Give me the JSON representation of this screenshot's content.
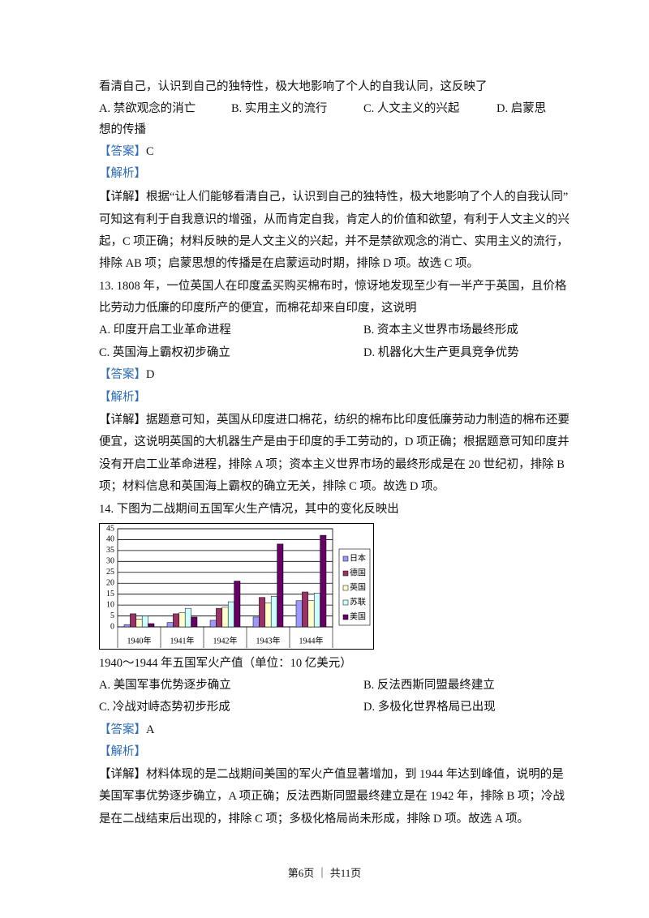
{
  "q12": {
    "stem_tail": "看清自己，认识到自己的独特性，极大地影响了个人的自我认同，这反映了",
    "options": [
      "A. 禁欲观念的消亡",
      "B. 实用主义的流行",
      "C. 人文主义的兴起",
      "D. 启蒙思"
    ],
    "option_tail": "想的传播",
    "answer_label": "【答案】",
    "answer": "C",
    "analysis_label": "【解析】",
    "detail_label": "【详解】",
    "detail_lines": [
      "根据“让人们能够看清自己，认识到自己的独特性，极大地影响了个人的自我认同”",
      "可知这有利于自我意识的增强，从而肯定自我，肯定人的价值和欲望，有利于人文主义的兴",
      "起，C 项正确；材料反映的是人文主义的兴起，并不是禁欲观念的消亡、实用主义的流行，",
      "排除 AB 项；启蒙思想的传播是在启蒙运动时期，排除 D 项。故选 C 项。"
    ]
  },
  "q13": {
    "stem_lines": [
      "13. 1808 年，一位英国人在印度孟买购买棉布时，惊讶地发现至少有一半产于英国，且价格",
      "比劳动力低廉的印度所产的便宜，而棉花却来自印度，这说明"
    ],
    "options": [
      "A. 印度开启工业革命进程",
      "B. 资本主义世界市场最终形成",
      "C. 英国海上霸权初步确立",
      "D. 机器化大生产更具竞争优势"
    ],
    "answer_label": "【答案】",
    "answer": "D",
    "analysis_label": "【解析】",
    "detail_label": "【详解】",
    "detail_lines": [
      "据题意可知，英国从印度进口棉花，纺织的棉布比印度低廉劳动力制造的棉布还要",
      "便宜，这说明英国的大机器生产是由于印度的手工劳动的，D 项正确；根据题意可知印度并",
      "没有开启工业革命进程，排除 A 项；资本主义世界市场的最终形成是在 20 世纪初，排除 B",
      "项；材料信息和英国海上霸权的确立无关，排除 C 项。故选 D 项。"
    ]
  },
  "q14": {
    "stem": "14.  下图为二战期间五国军火生产情况，其中的变化反映出",
    "caption": "1940～1944 年五国军火产值（单位：10 亿美元）",
    "options": [
      "A. 美国军事优势逐步确立",
      "B. 反法西斯同盟最终建立",
      "C. 冷战对峙态势初步形成",
      "D. 多极化世界格局已出现"
    ],
    "answer_label": "【答案】",
    "answer": "A",
    "analysis_label": "【解析】",
    "detail_label": "【详解】",
    "detail_lines": [
      "材料体现的是二战期间美国的军火产值显著增加，到 1944 年达到峰值，说明的是",
      "美国军事优势逐步确立，A 项正确；反法西斯同盟最终建立是在 1942 年，排除 B 项；冷战",
      "是在二战结束后出现的，排除 C 项；多极化格局尚未形成，排除 D 项。故选 A 项。"
    ]
  },
  "chart_data": {
    "type": "bar",
    "categories": [
      "1940年",
      "1941年",
      "1942年",
      "1943年",
      "1944年"
    ],
    "series": [
      {
        "name": "日本",
        "color": "#9999ff",
        "values": [
          1,
          2,
          3,
          4.5,
          12
        ]
      },
      {
        "name": "德国",
        "color": "#993366",
        "values": [
          6,
          6,
          8.5,
          13.5,
          16
        ]
      },
      {
        "name": "英国",
        "color": "#ffffcc",
        "values": [
          3.5,
          6.5,
          9,
          11,
          12
        ]
      },
      {
        "name": "苏联",
        "color": "#ccffff",
        "values": [
          5,
          8.5,
          11.5,
          14,
          15.5
        ]
      },
      {
        "name": "美国",
        "color": "#660066",
        "values": [
          1.5,
          4.5,
          21,
          38,
          42
        ]
      }
    ],
    "ylim": [
      0,
      45
    ],
    "yticks": [
      0,
      5,
      10,
      15,
      20,
      25,
      30,
      35,
      40,
      45
    ],
    "grid": true,
    "legend": "right"
  },
  "footer": "第6页 ｜ 共11页"
}
